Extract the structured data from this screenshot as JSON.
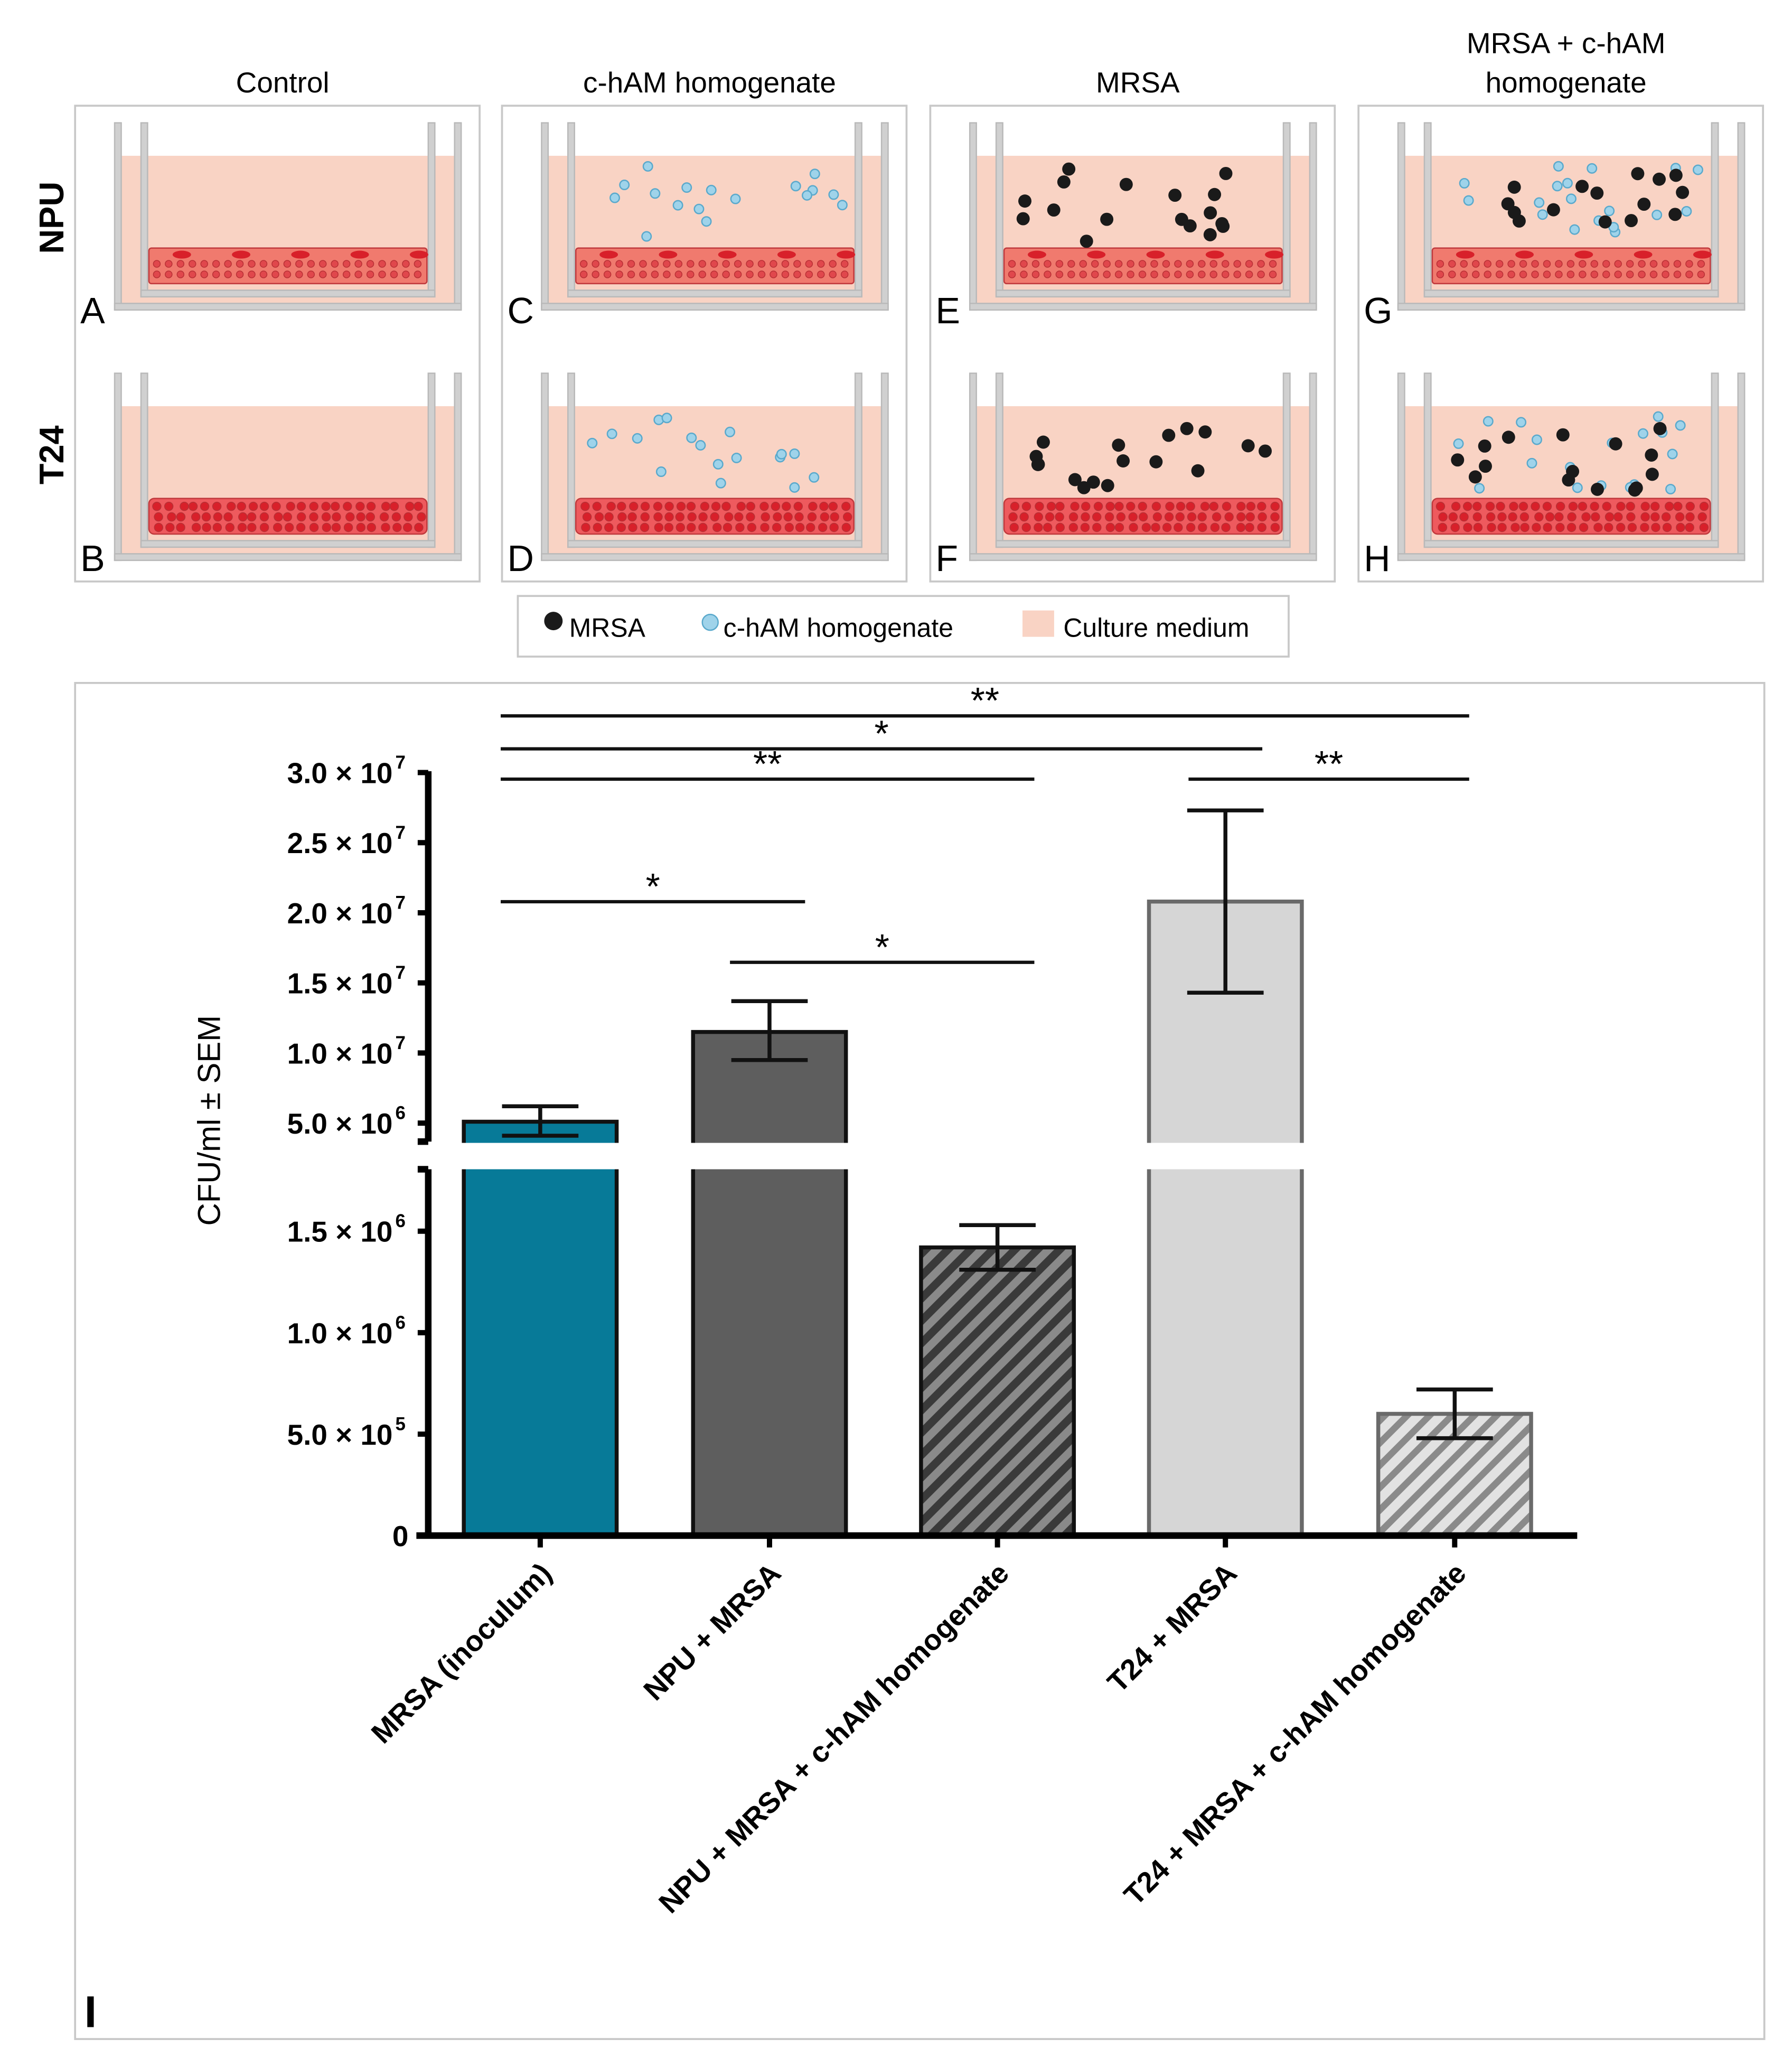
{
  "columns": [
    "Control",
    "c-hAM homogenate",
    "MRSA",
    [
      "MRSA + c-hAM",
      "homogenate"
    ]
  ],
  "rows": [
    "NPU",
    "T24"
  ],
  "panels": [
    {
      "letter": "A",
      "col": 0,
      "row": 0,
      "mrsa": false,
      "cham": false
    },
    {
      "letter": "B",
      "col": 0,
      "row": 1,
      "mrsa": false,
      "cham": false
    },
    {
      "letter": "C",
      "col": 1,
      "row": 0,
      "mrsa": false,
      "cham": true
    },
    {
      "letter": "D",
      "col": 1,
      "row": 1,
      "mrsa": false,
      "cham": true
    },
    {
      "letter": "E",
      "col": 2,
      "row": 0,
      "mrsa": true,
      "cham": false
    },
    {
      "letter": "F",
      "col": 2,
      "row": 1,
      "mrsa": true,
      "cham": false
    },
    {
      "letter": "G",
      "col": 3,
      "row": 0,
      "mrsa": true,
      "cham": true
    },
    {
      "letter": "H",
      "col": 3,
      "row": 1,
      "mrsa": true,
      "cham": true
    }
  ],
  "legend": {
    "mrsa": "MRSA",
    "cham": "c-hAM homogenate",
    "medium": "Culture medium"
  },
  "colors": {
    "medium": "#f9d3c4",
    "cells": "#e8474c",
    "mrsa": "#1a1a1a",
    "cham": "#9fd3ea",
    "wall": "#b9b9b9"
  },
  "chart_data": {
    "type": "bar",
    "panel_letter": "I",
    "ylabel": "CFU/ml ± SEM",
    "xlabel": "",
    "axis_break": true,
    "ylim_lower": [
      0,
      1800000
    ],
    "ylim_upper": [
      4000000,
      30000000
    ],
    "yticks_lower": [
      {
        "v": 0,
        "base": "0",
        "exp": ""
      },
      {
        "v": 500000,
        "base": "5.0 × 10",
        "exp": "5"
      },
      {
        "v": 1000000,
        "base": "1.0 × 10",
        "exp": "6"
      },
      {
        "v": 1500000,
        "base": "1.5 × 10",
        "exp": "6"
      }
    ],
    "yticks_upper": [
      {
        "v": 5000000,
        "base": "5.0 × 10",
        "exp": "6"
      },
      {
        "v": 10000000,
        "base": "1.0 × 10",
        "exp": "7"
      },
      {
        "v": 15000000,
        "base": "1.5 × 10",
        "exp": "7"
      },
      {
        "v": 20000000,
        "base": "2.0 × 10",
        "exp": "7"
      },
      {
        "v": 25000000,
        "base": "2.5 × 10",
        "exp": "7"
      },
      {
        "v": 30000000,
        "base": "3.0 × 10",
        "exp": "7"
      }
    ],
    "categories": [
      "MRSA (inoculum)",
      "NPU + MRSA",
      "NPU + MRSA + c-hAM homogenate",
      "T24 + MRSA",
      "T24 + MRSA + c-hAM homogenate"
    ],
    "values": [
      5100000,
      11500000,
      1420000,
      20800000,
      600000
    ],
    "sem_low": [
      4100000,
      9500000,
      1310000,
      14300000,
      480000
    ],
    "sem_high": [
      6200000,
      13700000,
      1530000,
      27300000,
      720000
    ],
    "fills": [
      "#077a98",
      "#5e5e5e",
      "#5e5e5e",
      "#d6d6d6",
      "#d6d6d6"
    ],
    "hatched": [
      false,
      false,
      true,
      false,
      true
    ],
    "significance": [
      {
        "from": 0,
        "to": 4,
        "label": "**"
      },
      {
        "from": 0,
        "to": 3,
        "label": "*"
      },
      {
        "from": 0,
        "to": 2,
        "label": "**"
      },
      {
        "from": 3,
        "to": 4,
        "label": "**"
      },
      {
        "from": 0,
        "to": 1,
        "label": "*"
      },
      {
        "from": 1,
        "to": 2,
        "label": "*"
      }
    ]
  }
}
